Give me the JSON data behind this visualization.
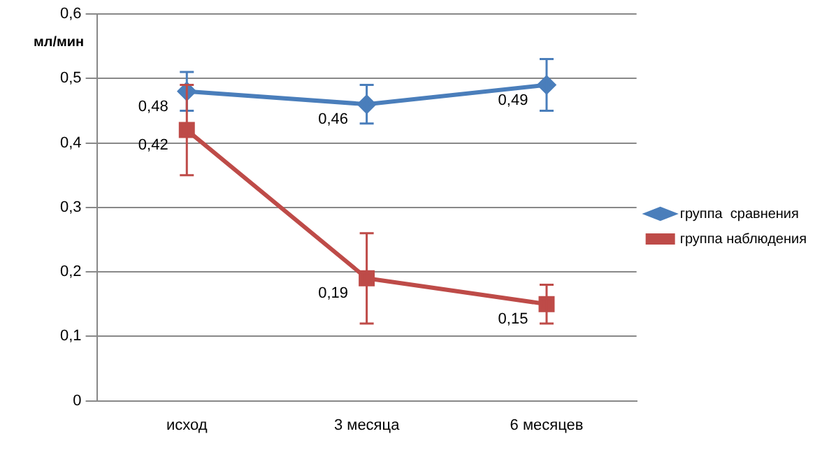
{
  "chart_data": {
    "type": "line",
    "ylabel": "мл/мин",
    "categories": [
      "исход",
      "3 месяца",
      "6 месяцев"
    ],
    "ylim": [
      0,
      0.6
    ],
    "yticks": [
      0,
      {
        "value": 0.1,
        "label": "0,1"
      },
      {
        "value": 0.2,
        "label": "0,2"
      },
      {
        "value": 0.3,
        "label": "0,3"
      },
      {
        "value": 0.4,
        "label": "0,4"
      },
      {
        "value": 0.5,
        "label": "0,5"
      },
      {
        "value": 0.6,
        "label": "0,6"
      }
    ],
    "grid": "y",
    "legend": "right",
    "line_style": "solid",
    "series": [
      {
        "name": "группа  сравнения",
        "color": "#4a7ebb",
        "marker": "diamond",
        "values": [
          0.48,
          0.46,
          0.49
        ],
        "errors": [
          0.03,
          0.03,
          0.04
        ],
        "value_labels": [
          "0,48",
          "0,46",
          "0,49"
        ]
      },
      {
        "name": "группа наблюдения",
        "color": "#be4b48",
        "marker": "square",
        "values": [
          0.42,
          0.19,
          0.15
        ],
        "errors": [
          0.07,
          0.07,
          0.03
        ],
        "value_labels": [
          "0,42",
          "0,19",
          "0,15"
        ]
      }
    ]
  }
}
